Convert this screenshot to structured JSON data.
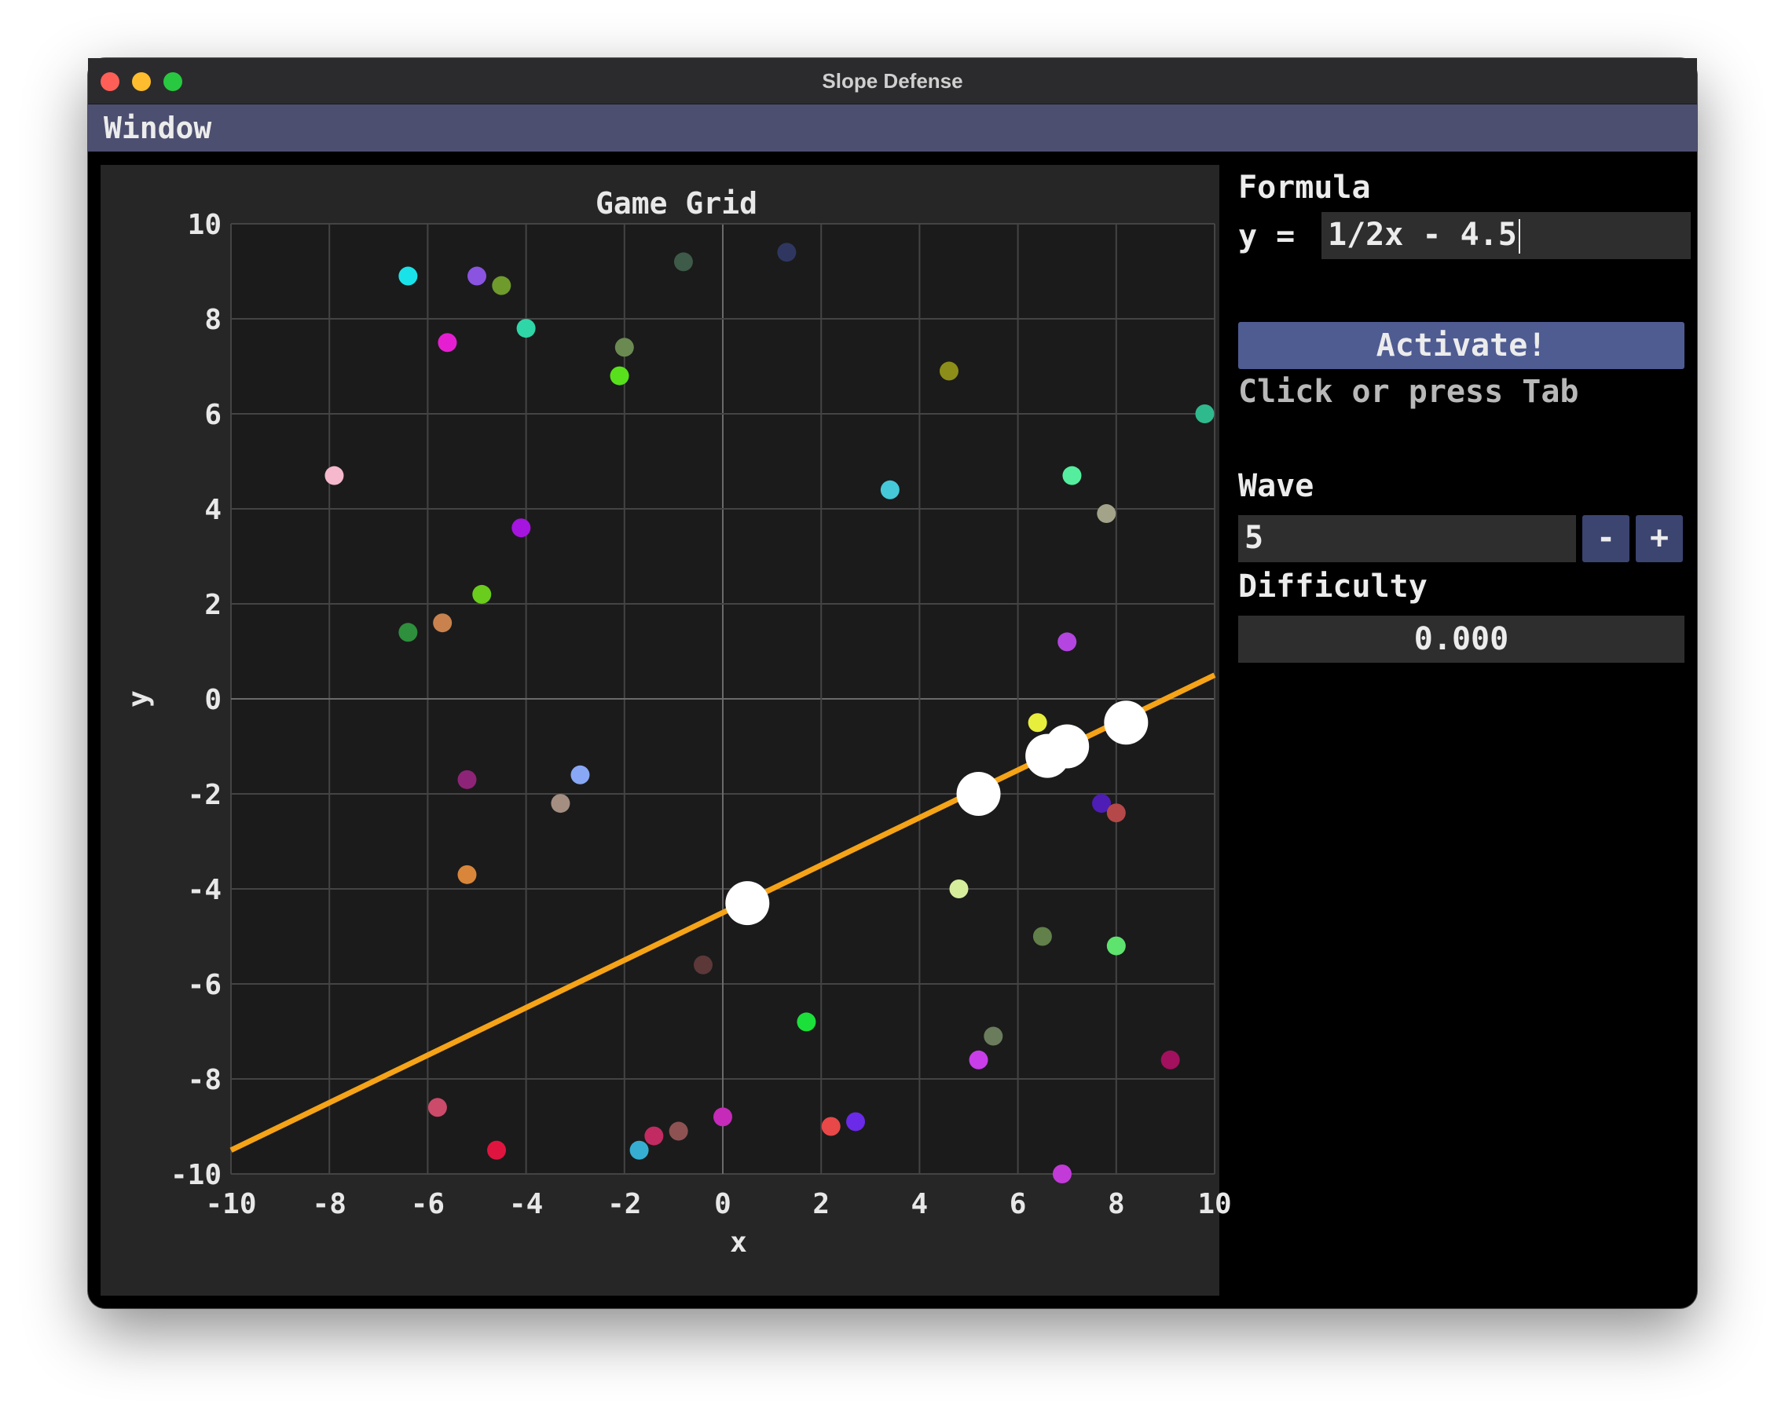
{
  "window": {
    "title": "Slope Defense"
  },
  "menubar": {
    "title": "Window"
  },
  "plot": {
    "title": "Game Grid",
    "xlabel": "x",
    "ylabel": "y",
    "xlim": [
      -10,
      10
    ],
    "ylim": [
      -10,
      10
    ],
    "ticks": [
      -10,
      -8,
      -6,
      -4,
      -2,
      0,
      2,
      4,
      6,
      8,
      10
    ],
    "colors": {
      "background": "#1b1b1b",
      "grid": "#444444",
      "axis_zero": "#6a6a6a",
      "line": "#f5a317",
      "hit": "#ffffff",
      "text": "#e8e8e8"
    }
  },
  "chart_data": {
    "type": "scatter",
    "title": "Game Grid",
    "xlabel": "x",
    "ylabel": "y",
    "xlim": [
      -10,
      10
    ],
    "ylim": [
      -10,
      10
    ],
    "grid": true,
    "line": {
      "formula": "1/2x - 4.5",
      "slope": 0.5,
      "intercept": -4.5,
      "color": "#f5a317"
    },
    "hits": [
      {
        "x": 0.5,
        "y": -4.3
      },
      {
        "x": 5.2,
        "y": -2.0
      },
      {
        "x": 6.6,
        "y": -1.2
      },
      {
        "x": 7.0,
        "y": -1.0
      },
      {
        "x": 8.2,
        "y": -0.5
      }
    ],
    "enemies": [
      {
        "x": -6.4,
        "y": 8.9,
        "color": "#19e3e8"
      },
      {
        "x": -5.0,
        "y": 8.9,
        "color": "#8a53e0"
      },
      {
        "x": -4.5,
        "y": 8.7,
        "color": "#6f9a2c"
      },
      {
        "x": -0.8,
        "y": 9.2,
        "color": "#3e5a48"
      },
      {
        "x": 1.3,
        "y": 9.4,
        "color": "#2f3760"
      },
      {
        "x": -5.6,
        "y": 7.5,
        "color": "#e51fd1"
      },
      {
        "x": -4.0,
        "y": 7.8,
        "color": "#2fd6a8"
      },
      {
        "x": -2.0,
        "y": 7.4,
        "color": "#6b8a52"
      },
      {
        "x": -2.1,
        "y": 6.8,
        "color": "#58e01c"
      },
      {
        "x": 4.6,
        "y": 6.9,
        "color": "#8d8d19"
      },
      {
        "x": 9.8,
        "y": 6.0,
        "color": "#2fba8e"
      },
      {
        "x": -7.9,
        "y": 4.7,
        "color": "#f5b8cc"
      },
      {
        "x": 3.4,
        "y": 4.4,
        "color": "#45c8d8"
      },
      {
        "x": 7.1,
        "y": 4.7,
        "color": "#55ee9e"
      },
      {
        "x": 7.8,
        "y": 3.9,
        "color": "#a3a38a"
      },
      {
        "x": -4.1,
        "y": 3.6,
        "color": "#a614e0"
      },
      {
        "x": -4.9,
        "y": 2.2,
        "color": "#6acc1c"
      },
      {
        "x": -5.7,
        "y": 1.6,
        "color": "#c9824d"
      },
      {
        "x": -6.4,
        "y": 1.4,
        "color": "#2e8f3c"
      },
      {
        "x": 7.0,
        "y": 1.2,
        "color": "#b445e0"
      },
      {
        "x": 6.4,
        "y": -0.5,
        "color": "#e8ee3c"
      },
      {
        "x": -5.2,
        "y": -1.7,
        "color": "#8e2477"
      },
      {
        "x": -2.9,
        "y": -1.6,
        "color": "#88a8f5"
      },
      {
        "x": -3.3,
        "y": -2.2,
        "color": "#a48e82"
      },
      {
        "x": 7.7,
        "y": -2.2,
        "color": "#4d1db5"
      },
      {
        "x": 8.0,
        "y": -2.4,
        "color": "#b54848"
      },
      {
        "x": -5.2,
        "y": -3.7,
        "color": "#d9863a"
      },
      {
        "x": 4.8,
        "y": -4.0,
        "color": "#d6ee9c"
      },
      {
        "x": 6.5,
        "y": -5.0,
        "color": "#62804a"
      },
      {
        "x": 8.0,
        "y": -5.2,
        "color": "#5ee36e"
      },
      {
        "x": -0.4,
        "y": -5.6,
        "color": "#5c3838"
      },
      {
        "x": 1.7,
        "y": -6.8,
        "color": "#1be03a"
      },
      {
        "x": 5.5,
        "y": -7.1,
        "color": "#6a7c5c"
      },
      {
        "x": 5.2,
        "y": -7.6,
        "color": "#c93ee8"
      },
      {
        "x": 9.1,
        "y": -7.6,
        "color": "#a3105d"
      },
      {
        "x": -5.8,
        "y": -8.6,
        "color": "#cc4a6a"
      },
      {
        "x": 0.0,
        "y": -8.8,
        "color": "#c52ab8"
      },
      {
        "x": 2.7,
        "y": -8.9,
        "color": "#6a2ae8"
      },
      {
        "x": 2.2,
        "y": -9.0,
        "color": "#e84848"
      },
      {
        "x": -0.9,
        "y": -9.1,
        "color": "#8e5252"
      },
      {
        "x": -1.4,
        "y": -9.2,
        "color": "#c22a62"
      },
      {
        "x": -4.6,
        "y": -9.5,
        "color": "#e0153f"
      },
      {
        "x": -1.7,
        "y": -9.5,
        "color": "#36aed2"
      },
      {
        "x": 6.9,
        "y": -10.0,
        "color": "#c23ad8"
      }
    ]
  },
  "sidebar": {
    "formula_label": "Formula",
    "formula_prefix": "y =",
    "formula_value": "1/2x - 4.5",
    "activate_label": "Activate!",
    "hint": "Click or press Tab",
    "wave_label": "Wave",
    "wave_value": "5",
    "minus_label": "-",
    "plus_label": "+",
    "difficulty_label": "Difficulty",
    "difficulty_value": "0.000"
  }
}
